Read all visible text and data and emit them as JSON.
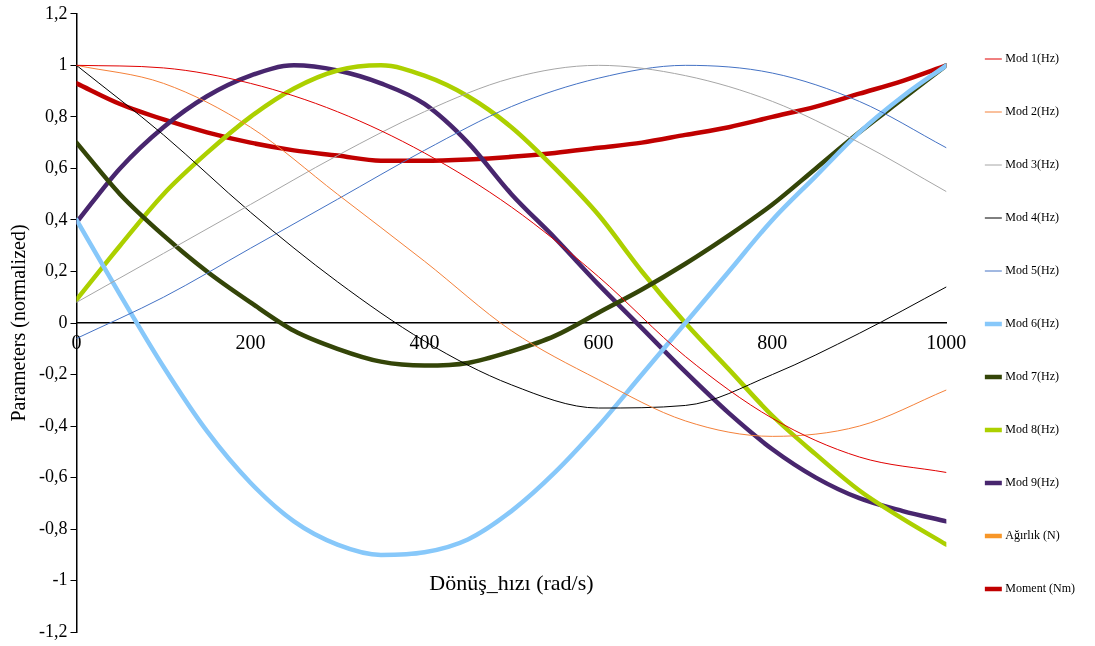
{
  "chart_data": {
    "type": "line",
    "xlabel": "Dönüş_hızı (rad/s)",
    "ylabel": "Parameters (normalized)",
    "x": [
      0,
      50,
      100,
      150,
      200,
      250,
      300,
      350,
      400,
      450,
      500,
      550,
      600,
      650,
      700,
      750,
      800,
      850,
      900,
      950,
      1000
    ],
    "xlim": [
      0,
      1000
    ],
    "xticks": [
      0,
      200,
      400,
      600,
      800,
      1000
    ],
    "ylim": [
      -1.2,
      1.2
    ],
    "yticks": [
      {
        "value": -1.2,
        "label": "-1,2"
      },
      {
        "value": -1,
        "label": "-1"
      },
      {
        "value": -0.8,
        "label": "-0,8"
      },
      {
        "value": -0.6,
        "label": "-0,6"
      },
      {
        "value": -0.4,
        "label": "-0,4"
      },
      {
        "value": -0.2,
        "label": "-0,2"
      },
      {
        "value": 0,
        "label": "0"
      },
      {
        "value": 0.2,
        "label": "0,2"
      },
      {
        "value": 0.4,
        "label": "0,4"
      },
      {
        "value": 0.6,
        "label": "0,6"
      },
      {
        "value": 0.8,
        "label": "0,8"
      },
      {
        "value": 1,
        "label": "1"
      },
      {
        "value": 1.2,
        "label": "1,2"
      }
    ],
    "grid": false,
    "legend": "right",
    "marker": "none",
    "series": [
      {
        "name": "Mod 1(Hz)",
        "color": "#e00000",
        "x": [
          0,
          100,
          200,
          300,
          400,
          500,
          600,
          700,
          800,
          900,
          1000
        ],
        "values": [
          1,
          0.99,
          0.93,
          0.82,
          0.66,
          0.45,
          0.18,
          -0.13,
          -0.37,
          -0.52,
          -0.58
        ]
      },
      {
        "name": "Mod 2(Hz)",
        "color": "#f4813a",
        "x": [
          0,
          100,
          200,
          300,
          400,
          500,
          600,
          700,
          800,
          900,
          1000
        ],
        "values": [
          1,
          0.93,
          0.76,
          0.5,
          0.24,
          -0.03,
          -0.22,
          -0.38,
          -0.44,
          -0.4,
          -0.26
        ]
      },
      {
        "name": "Mod 3(Hz)",
        "color": "#a6a6a6",
        "x": [
          0,
          100,
          200,
          300,
          400,
          500,
          600,
          700,
          800,
          900,
          1000
        ],
        "values": [
          0.08,
          0.27,
          0.46,
          0.65,
          0.82,
          0.95,
          1.0,
          0.96,
          0.86,
          0.7,
          0.51
        ]
      },
      {
        "name": "Mod 4(Hz)",
        "color": "#000000",
        "x": [
          0,
          100,
          200,
          300,
          400,
          500,
          600,
          700,
          800,
          900,
          1000
        ],
        "values": [
          1,
          0.73,
          0.43,
          0.16,
          -0.07,
          -0.24,
          -0.33,
          -0.32,
          -0.2,
          -0.04,
          0.14
        ]
      },
      {
        "name": "Mod 5(Hz)",
        "color": "#4472c4",
        "x": [
          0,
          100,
          200,
          300,
          400,
          500,
          600,
          700,
          800,
          900,
          1000
        ],
        "values": [
          -0.06,
          0.1,
          0.29,
          0.48,
          0.67,
          0.84,
          0.95,
          1.0,
          0.97,
          0.86,
          0.68
        ]
      },
      {
        "name": "Mod 6(Hz)",
        "color": "#87c8fa",
        "values": [
          0.4,
          0.11,
          -0.17,
          -0.42,
          -0.62,
          -0.77,
          -0.86,
          -0.9,
          -0.89,
          -0.84,
          -0.73,
          -0.58,
          -0.4,
          -0.2,
          0.0,
          0.2,
          0.4,
          0.57,
          0.74,
          0.88,
          1.0
        ]
      },
      {
        "name": "Mod 7(Hz)",
        "color": "#344508",
        "values": [
          0.7,
          0.5,
          0.34,
          0.2,
          0.08,
          -0.03,
          -0.1,
          -0.15,
          -0.165,
          -0.155,
          -0.11,
          -0.05,
          0.04,
          0.13,
          0.23,
          0.34,
          0.46,
          0.6,
          0.74,
          0.87,
          1.0
        ]
      },
      {
        "name": "Mod 8(Hz)",
        "color": "#acd000",
        "values": [
          0.09,
          0.3,
          0.5,
          0.66,
          0.8,
          0.91,
          0.98,
          1.0,
          0.96,
          0.88,
          0.76,
          0.6,
          0.42,
          0.2,
          0.0,
          -0.18,
          -0.36,
          -0.51,
          -0.65,
          -0.76,
          -0.86
        ]
      },
      {
        "name": "Mod 9(Hz)",
        "color": "#48266e",
        "values": [
          0.39,
          0.6,
          0.76,
          0.88,
          0.96,
          1.0,
          0.98,
          0.93,
          0.85,
          0.7,
          0.5,
          0.33,
          0.15,
          -0.02,
          -0.19,
          -0.35,
          -0.49,
          -0.6,
          -0.68,
          -0.73,
          -0.77
        ]
      },
      {
        "name": "Ağırlık (N)",
        "color": "#f79628",
        "values": [
          null,
          null,
          null,
          null,
          null,
          null,
          null,
          null,
          null,
          null,
          null,
          null,
          null,
          null,
          null,
          null,
          null,
          null,
          null,
          null,
          null
        ]
      },
      {
        "name": "Moment (Nm)",
        "color": "#c00000",
        "values": [
          0.93,
          0.85,
          0.79,
          0.74,
          0.7,
          0.67,
          0.65,
          0.63,
          0.63,
          0.635,
          0.645,
          0.66,
          0.68,
          0.7,
          0.73,
          0.76,
          0.8,
          0.84,
          0.89,
          0.94,
          1.0
        ]
      }
    ]
  }
}
